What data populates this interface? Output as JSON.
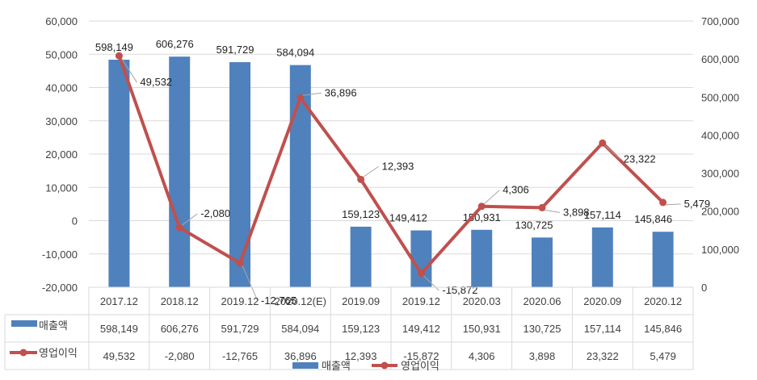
{
  "chart_data": {
    "type": "bar+line",
    "categories": [
      "2017.12",
      "2018.12",
      "2019.12",
      "2020.12(E)",
      "2019.09",
      "2019.12",
      "2020.03",
      "2020.06",
      "2020.09",
      "2020.12"
    ],
    "series": [
      {
        "name": "매출액",
        "type": "bar",
        "axis": "right",
        "color": "#4f81bd",
        "values": [
          598149,
          606276,
          591729,
          584094,
          159123,
          149412,
          150931,
          130725,
          157114,
          145846
        ],
        "labels": [
          "598,149",
          "606,276",
          "591,729",
          "584,094",
          "159,123",
          "149,412",
          "150,931",
          "130,725",
          "157,114",
          "145,846"
        ]
      },
      {
        "name": "영업이익",
        "type": "line",
        "axis": "left",
        "color": "#c0504d",
        "values": [
          49532,
          -2080,
          -12765,
          36896,
          12393,
          -15872,
          4306,
          3898,
          23322,
          5479
        ],
        "labels": [
          "49,532",
          "-2,080",
          "-12,765",
          "36,896",
          "12,393",
          "-15,872",
          "4,306",
          "3,898",
          "23,322",
          "5,479"
        ]
      }
    ],
    "left_axis": {
      "min": -20000,
      "max": 60000,
      "step": 10000,
      "ticks": [
        "-20,000",
        "-10,000",
        "0",
        "10,000",
        "20,000",
        "30,000",
        "40,000",
        "50,000",
        "60,000"
      ]
    },
    "right_axis": {
      "min": 0,
      "max": 700000,
      "step": 100000,
      "ticks": [
        "0",
        "100,000",
        "200,000",
        "300,000",
        "400,000",
        "500,000",
        "600,000",
        "700,000"
      ]
    },
    "grid": true,
    "legend": "bottom",
    "data_table": true
  }
}
